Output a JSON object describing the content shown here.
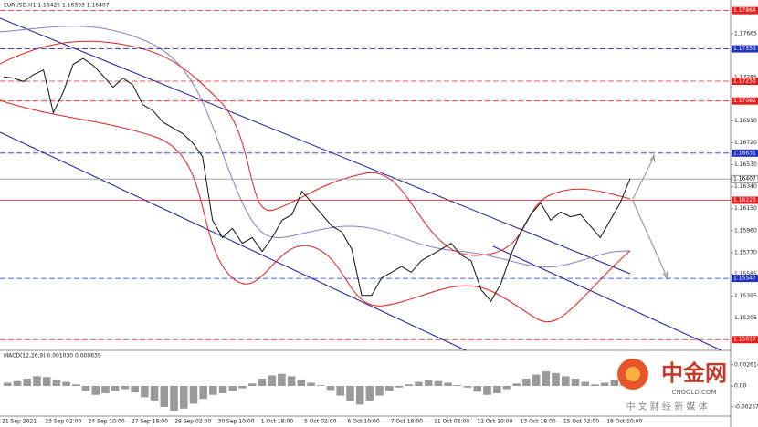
{
  "chart_data": {
    "type": "line",
    "title": "EURUSD,H1  1.16425 1.16393 1.16407",
    "ylim": [
      1.1494,
      1.1794
    ],
    "yticks": [
      {
        "value": 1.17665,
        "label": "1.17665"
      },
      {
        "value": 1.17285,
        "label": "1.17285"
      },
      {
        "value": 1.1691,
        "label": "1.16910"
      },
      {
        "value": 1.1672,
        "label": "1.16720"
      },
      {
        "value": 1.1653,
        "label": "1.16530"
      },
      {
        "value": 1.1634,
        "label": "1.16340"
      },
      {
        "value": 1.1615,
        "label": "1.16150"
      },
      {
        "value": 1.1596,
        "label": "1.15960"
      },
      {
        "value": 1.1577,
        "label": "1.15770"
      },
      {
        "value": 1.15585,
        "label": "1.15585"
      },
      {
        "value": 1.15395,
        "label": "1.15395"
      },
      {
        "value": 1.15205,
        "label": "1.15205"
      }
    ],
    "x_labels": [
      "21 Sep 2021",
      "23 Sep 02:00",
      "24 Sep 10:00",
      "27 Sep 18:00",
      "29 Sep 02:00",
      "30 Sep 10:00",
      "1 Oct 18:00",
      "5 Oct 02:00",
      "6 Oct 10:00",
      "7 Oct 18:00",
      "11 Oct 02:00",
      "12 Oct 10:00",
      "13 Oct 18:00",
      "15 Oct 02:00",
      "18 Oct 10:00"
    ],
    "color": "#111111",
    "values": [
      1.1729,
      1.1728,
      1.1725,
      1.1731,
      1.1735,
      1.1698,
      1.1716,
      1.174,
      1.1745,
      1.1739,
      1.173,
      1.172,
      1.1728,
      1.1722,
      1.1705,
      1.17,
      1.169,
      1.1685,
      1.168,
      1.1672,
      1.166,
      1.1605,
      1.159,
      1.1598,
      1.1585,
      1.159,
      1.1578,
      1.159,
      1.1605,
      1.161,
      1.163,
      1.162,
      1.161,
      1.16,
      1.1595,
      1.158,
      1.154,
      1.154,
      1.1555,
      1.156,
      1.1565,
      1.156,
      1.157,
      1.1575,
      1.158,
      1.1585,
      1.1575,
      1.157,
      1.1545,
      1.1535,
      1.155,
      1.1575,
      1.1595,
      1.161,
      1.162,
      1.1605,
      1.1612,
      1.1608,
      1.161,
      1.16,
      1.159,
      1.1605,
      1.162,
      1.1641
    ],
    "levels": [
      {
        "value": 1.17864,
        "color": "#e02020"
      },
      {
        "value": 1.17533,
        "color": "#2030c0"
      },
      {
        "value": 1.17253,
        "color": "#e02020"
      },
      {
        "value": 1.17082,
        "color": "#e02020"
      },
      {
        "value": 1.16631,
        "color": "#2030c0"
      },
      {
        "value": 1.16407,
        "color": "#999999"
      },
      {
        "value": 1.16223,
        "color": "#e02020"
      },
      {
        "value": 1.15547,
        "color": "#2030c0"
      },
      {
        "value": 1.15017,
        "color": "#e02020"
      }
    ],
    "macd": {
      "title": "MACD(12,26,9) 0.001030 0.000639",
      "ylim": [
        -0.0035,
        0.0035
      ],
      "yticks": [
        {
          "value": 0.002614,
          "label": "0.002614"
        },
        {
          "value": 0,
          "label": "0.00"
        },
        {
          "value": -0.002571,
          "label": "-0.002571"
        }
      ],
      "values": [
        0.0004,
        0.0006,
        0.0009,
        0.0012,
        0.0011,
        0.0008,
        0.0005,
        0.0002,
        -0.0006,
        -0.0011,
        -0.0009,
        -0.0006,
        -0.0004,
        -0.0008,
        -0.0014,
        -0.0018,
        -0.0026,
        -0.0031,
        -0.0028,
        -0.0022,
        -0.0016,
        -0.0011,
        -0.0009,
        -0.0006,
        -0.0003,
        0.0003,
        0.0009,
        0.0013,
        0.0015,
        0.0012,
        0.0008,
        0.0004,
        0.0001,
        -0.0005,
        -0.0012,
        -0.0019,
        -0.0023,
        -0.0018,
        -0.0012,
        -0.0006,
        -0.0002,
        0.0002,
        0.0005,
        0.0007,
        0.0006,
        0.0004,
        0.0001,
        -0.0002,
        -0.0007,
        -0.0011,
        -0.0009,
        -0.0004,
        0.0003,
        0.0009,
        0.0014,
        0.0018,
        0.0016,
        0.0012,
        0.0009,
        0.0005,
        0.0002,
        0.0004,
        0.0008,
        0.001
      ]
    },
    "watermark": {
      "brand": "中金网",
      "site": "CNGOLD.COM",
      "slogan": "中 文 财 经 新 媒 体"
    }
  }
}
